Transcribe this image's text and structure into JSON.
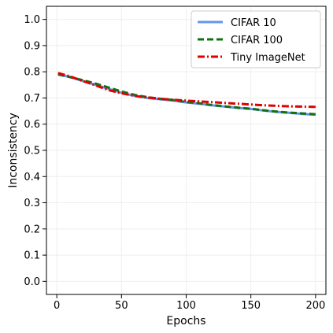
{
  "chart_data": {
    "type": "line",
    "title": "",
    "xlabel": "Epochs",
    "ylabel": "Inconsistency",
    "xlim": [
      -8,
      208
    ],
    "ylim": [
      -0.05,
      1.05
    ],
    "xticks": [
      0,
      50,
      100,
      150,
      200
    ],
    "yticks": [
      0.0,
      0.1,
      0.2,
      0.3,
      0.4,
      0.5,
      0.6,
      0.7,
      0.8,
      0.9,
      1.0
    ],
    "xtick_labels": [
      "0",
      "50",
      "100",
      "150",
      "200"
    ],
    "ytick_labels": [
      "0.0",
      "0.1",
      "0.2",
      "0.3",
      "0.4",
      "0.5",
      "0.6",
      "0.7",
      "0.8",
      "0.9",
      "1.0"
    ],
    "grid": true,
    "legend_position": "top-right",
    "series": [
      {
        "name": "CIFAR 10",
        "color": "#6495ED",
        "dash": "solid",
        "x": [
          1,
          10,
          20,
          30,
          40,
          50,
          60,
          70,
          80,
          90,
          100,
          110,
          120,
          130,
          140,
          150,
          160,
          170,
          180,
          190,
          200
        ],
        "y": [
          0.79,
          0.78,
          0.765,
          0.75,
          0.735,
          0.72,
          0.708,
          0.7,
          0.695,
          0.69,
          0.683,
          0.678,
          0.672,
          0.667,
          0.662,
          0.658,
          0.652,
          0.647,
          0.643,
          0.639,
          0.636
        ]
      },
      {
        "name": "CIFAR 100",
        "color": "#127012",
        "dash": "dashed",
        "x": [
          1,
          10,
          20,
          30,
          40,
          50,
          60,
          70,
          80,
          90,
          100,
          110,
          120,
          130,
          140,
          150,
          160,
          170,
          180,
          190,
          200
        ],
        "y": [
          0.79,
          0.78,
          0.768,
          0.755,
          0.74,
          0.725,
          0.712,
          0.703,
          0.697,
          0.692,
          0.685,
          0.68,
          0.673,
          0.668,
          0.663,
          0.659,
          0.653,
          0.648,
          0.644,
          0.641,
          0.638
        ]
      },
      {
        "name": "Tiny ImageNet",
        "color": "#E00000",
        "dash": "dashdot",
        "x": [
          1,
          10,
          20,
          30,
          40,
          50,
          60,
          70,
          80,
          90,
          100,
          110,
          120,
          130,
          140,
          150,
          160,
          170,
          180,
          190,
          200
        ],
        "y": [
          0.795,
          0.783,
          0.765,
          0.748,
          0.73,
          0.718,
          0.708,
          0.702,
          0.697,
          0.693,
          0.69,
          0.687,
          0.684,
          0.681,
          0.678,
          0.675,
          0.672,
          0.67,
          0.668,
          0.667,
          0.666
        ]
      }
    ]
  }
}
